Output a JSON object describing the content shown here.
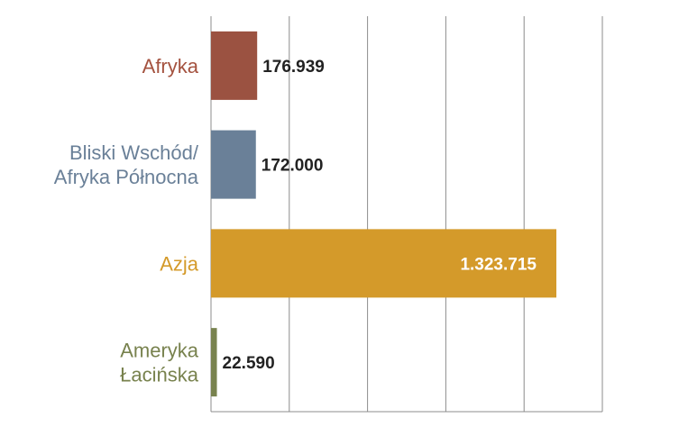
{
  "chart_data": {
    "type": "bar",
    "orientation": "horizontal",
    "title": "",
    "xlabel": "",
    "ylabel": "",
    "xlim": [
      0,
      1500000
    ],
    "grid": true,
    "legend": "none",
    "categories": [
      {
        "label_lines": [
          "Afryka"
        ],
        "color": "#9b5241",
        "label_color": "#a4523f"
      },
      {
        "label_lines": [
          "Bliski Wschód/",
          "Afryka Północna"
        ],
        "color": "#6a8098",
        "label_color": "#6a8098"
      },
      {
        "label_lines": [
          "Azja"
        ],
        "color": "#d49a2a",
        "label_color": "#d49a2a"
      },
      {
        "label_lines": [
          "Ameryka",
          "Łacińska"
        ],
        "color": "#78824e",
        "label_color": "#78824e"
      }
    ],
    "values": [
      176939,
      172000,
      1323715,
      22590
    ],
    "value_labels": [
      "176.939",
      "172.000",
      "1.323.715",
      "22.590"
    ],
    "value_label_inside": [
      false,
      false,
      true,
      false
    ],
    "gridline_color": "#8c8c8c",
    "value_label_color_outside": "#222222",
    "value_label_color_inside": "#ffffff"
  }
}
